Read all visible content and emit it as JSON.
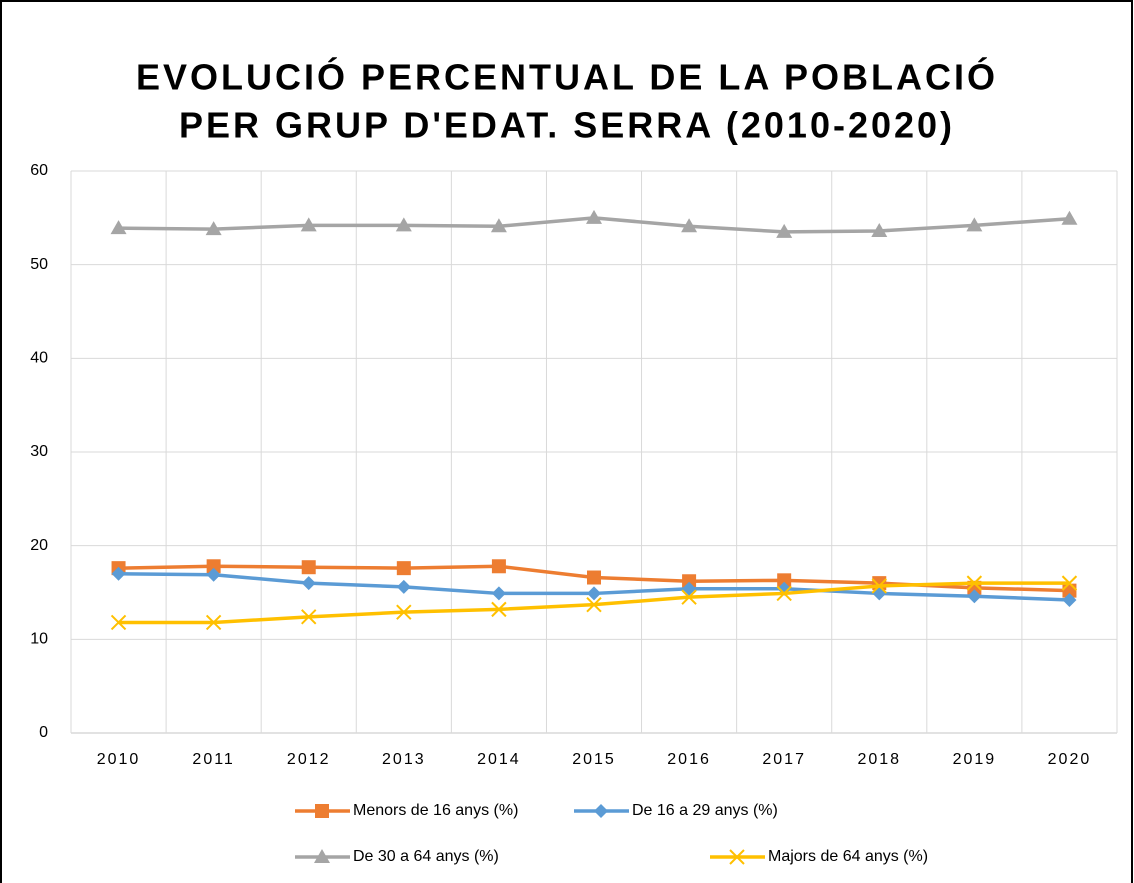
{
  "chart_data": {
    "type": "line",
    "title": [
      "EVOLUCIÓ PERCENTUAL DE LA POBLACIÓ",
      "PER GRUP D'EDAT. SERRA (2010-2020)"
    ],
    "categories": [
      "2010",
      "2011",
      "2012",
      "2013",
      "2014",
      "2015",
      "2016",
      "2017",
      "2018",
      "2019",
      "2020"
    ],
    "series": [
      {
        "name": "Menors de 16 anys (%)",
        "color": "#ED7D31",
        "marker": "square",
        "values": [
          17.6,
          17.8,
          17.7,
          17.6,
          17.8,
          16.6,
          16.2,
          16.3,
          16.0,
          15.5,
          15.2
        ]
      },
      {
        "name": "De 16 a 29 anys (%)",
        "color": "#5B9BD5",
        "marker": "diamond",
        "values": [
          17.0,
          16.9,
          16.0,
          15.6,
          14.9,
          14.9,
          15.4,
          15.4,
          14.9,
          14.6,
          14.2
        ]
      },
      {
        "name": "De 30 a 64 anys (%)",
        "color": "#A5A5A5",
        "marker": "triangle",
        "values": [
          53.9,
          53.8,
          54.2,
          54.2,
          54.1,
          55.0,
          54.1,
          53.5,
          53.6,
          54.2,
          54.9
        ]
      },
      {
        "name": "Majors de 64 anys (%)",
        "color": "#FFC000",
        "marker": "x",
        "values": [
          11.8,
          11.8,
          12.4,
          12.9,
          13.2,
          13.7,
          14.5,
          14.9,
          15.7,
          16.0,
          16.0
        ]
      }
    ],
    "ylim": [
      0,
      60
    ],
    "yticks": [
      0,
      10,
      20,
      30,
      40,
      50,
      60
    ],
    "grid": true,
    "legend": "bottom"
  }
}
